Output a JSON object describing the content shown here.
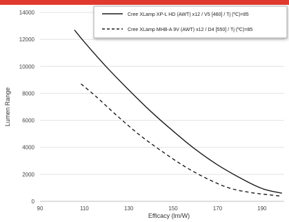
{
  "colors": {
    "top_bar": "#e03a2f",
    "series_color": "#1a1a1a",
    "grid": "#e2e2e2",
    "axis_text": "#444444"
  },
  "chart_data": {
    "type": "line",
    "title": "",
    "xlabel": "Efficacy (lm/W)",
    "ylabel": "Lumen Range",
    "xlim": [
      90,
      200
    ],
    "ylim": [
      0,
      14000
    ],
    "x_ticks": [
      90,
      110,
      130,
      150,
      170,
      190
    ],
    "y_ticks": [
      0,
      2000,
      4000,
      6000,
      8000,
      10000,
      12000,
      14000
    ],
    "x_tick_labels": [
      "90",
      "110",
      "130",
      "150",
      "170",
      "190"
    ],
    "y_tick_labels": [
      "0",
      "2000",
      "4000",
      "6000",
      "8000",
      "10000",
      "12000",
      "14000"
    ],
    "grid": "horizontal",
    "legend_position": "top-right",
    "series": [
      {
        "name": "Cree XLamp XP-L HD (AWT) x12 / V5 [460] / Tj (ºC)=85",
        "style": "solid",
        "x": [
          105.5,
          110,
          120,
          130,
          140,
          150,
          160,
          170,
          180,
          190,
          199
        ],
        "y": [
          12700,
          11800,
          9950,
          8250,
          6650,
          5200,
          3850,
          2700,
          1750,
          950,
          600
        ]
      },
      {
        "name": "Cree XLamp MHB-A  9V (AWT) x12 / D4 [550] / Tj (ºC)=85",
        "style": "dashed",
        "x": [
          108.5,
          115,
          125,
          135,
          145,
          155,
          165,
          175,
          185,
          195,
          199
        ],
        "y": [
          8700,
          7800,
          6300,
          4900,
          3700,
          2600,
          1700,
          1000,
          650,
          450,
          380
        ]
      }
    ]
  }
}
